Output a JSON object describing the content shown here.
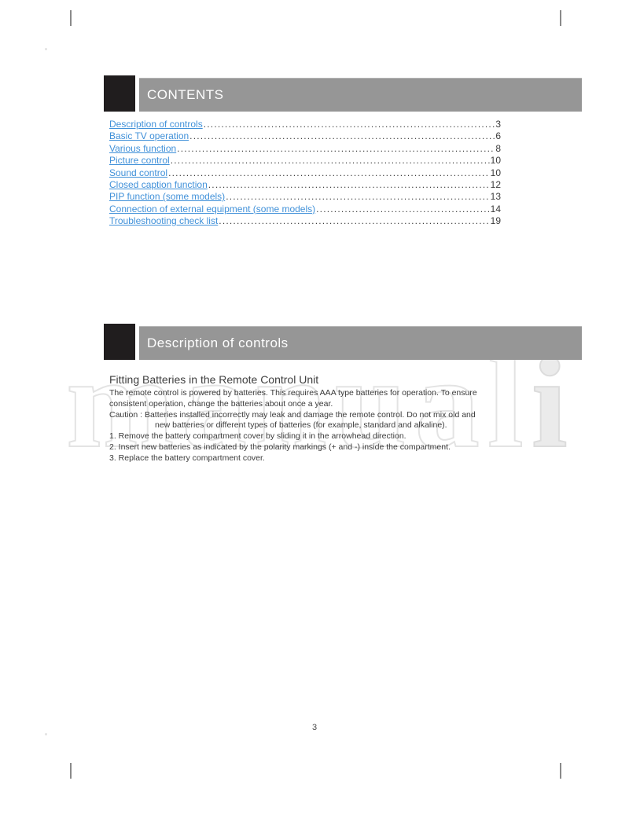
{
  "sections": [
    {
      "title": "CONTENTS"
    },
    {
      "title": "Description of controls"
    }
  ],
  "toc": {
    "entries": [
      {
        "label": "Description of controls",
        "page": "3"
      },
      {
        "label": "Basic TV operation",
        "page": "6"
      },
      {
        "label": "Various function",
        "page": "8"
      },
      {
        "label": "Picture control",
        "page": "10"
      },
      {
        "label": "Sound control",
        "page": "10"
      },
      {
        "label": "Closed caption function",
        "page": "12"
      },
      {
        "label": "PIP function (some models)",
        "page": "13"
      },
      {
        "label": "Connection of external equipment (some models)",
        "page": "14"
      },
      {
        "label": "Troubleshooting check list",
        "page": "19"
      }
    ]
  },
  "content": {
    "heading": "Fitting Batteries in the Remote Control Unit",
    "lines": [
      "The remote control is powered by batteries. This requires AAA type batteries for operation. To ensure",
      "consistent operation, change the batteries about once a year.",
      "Caution : Batteries installed incorrectly may leak and damage the remote control. Do not mix old and",
      "new batteries or different types of batteries (for example, standard and alkaline).",
      "1. Remove the battery compartment cover by sliding it in the arrowhead direction.",
      "2. Insert new batteries as indicated by the polarity markings (+ and -) inside the compartment.",
      "3. Replace the battery compartment cover."
    ]
  },
  "watermark": {
    "outline_text": "manual",
    "solid_text": "i"
  },
  "footer": {
    "page_number": "3"
  },
  "colors": {
    "banner_gray": "#969696",
    "marker_black": "#201d1e",
    "link_blue": "#4191d9"
  }
}
